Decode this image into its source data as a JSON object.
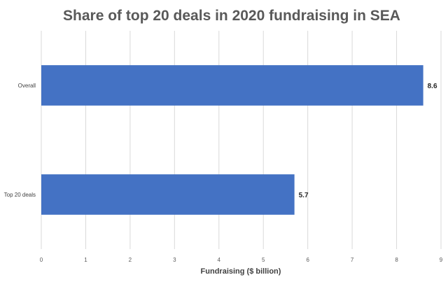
{
  "chart_data": {
    "type": "bar",
    "orientation": "horizontal",
    "title": "Share of top 20 deals in 2020 fundraising in SEA",
    "xlabel": "Fundraising ($ billion)",
    "ylabel": "",
    "categories": [
      "Overall",
      "Top 20 deals"
    ],
    "values": [
      8.6,
      5.7
    ],
    "data_labels": [
      "8.6",
      "5.7"
    ],
    "xlim": [
      0,
      9
    ],
    "xticks": [
      "0",
      "1",
      "2",
      "3",
      "4",
      "5",
      "6",
      "7",
      "8",
      "9"
    ],
    "grid": true,
    "legend": "none",
    "bar_color": "#4472c4"
  }
}
